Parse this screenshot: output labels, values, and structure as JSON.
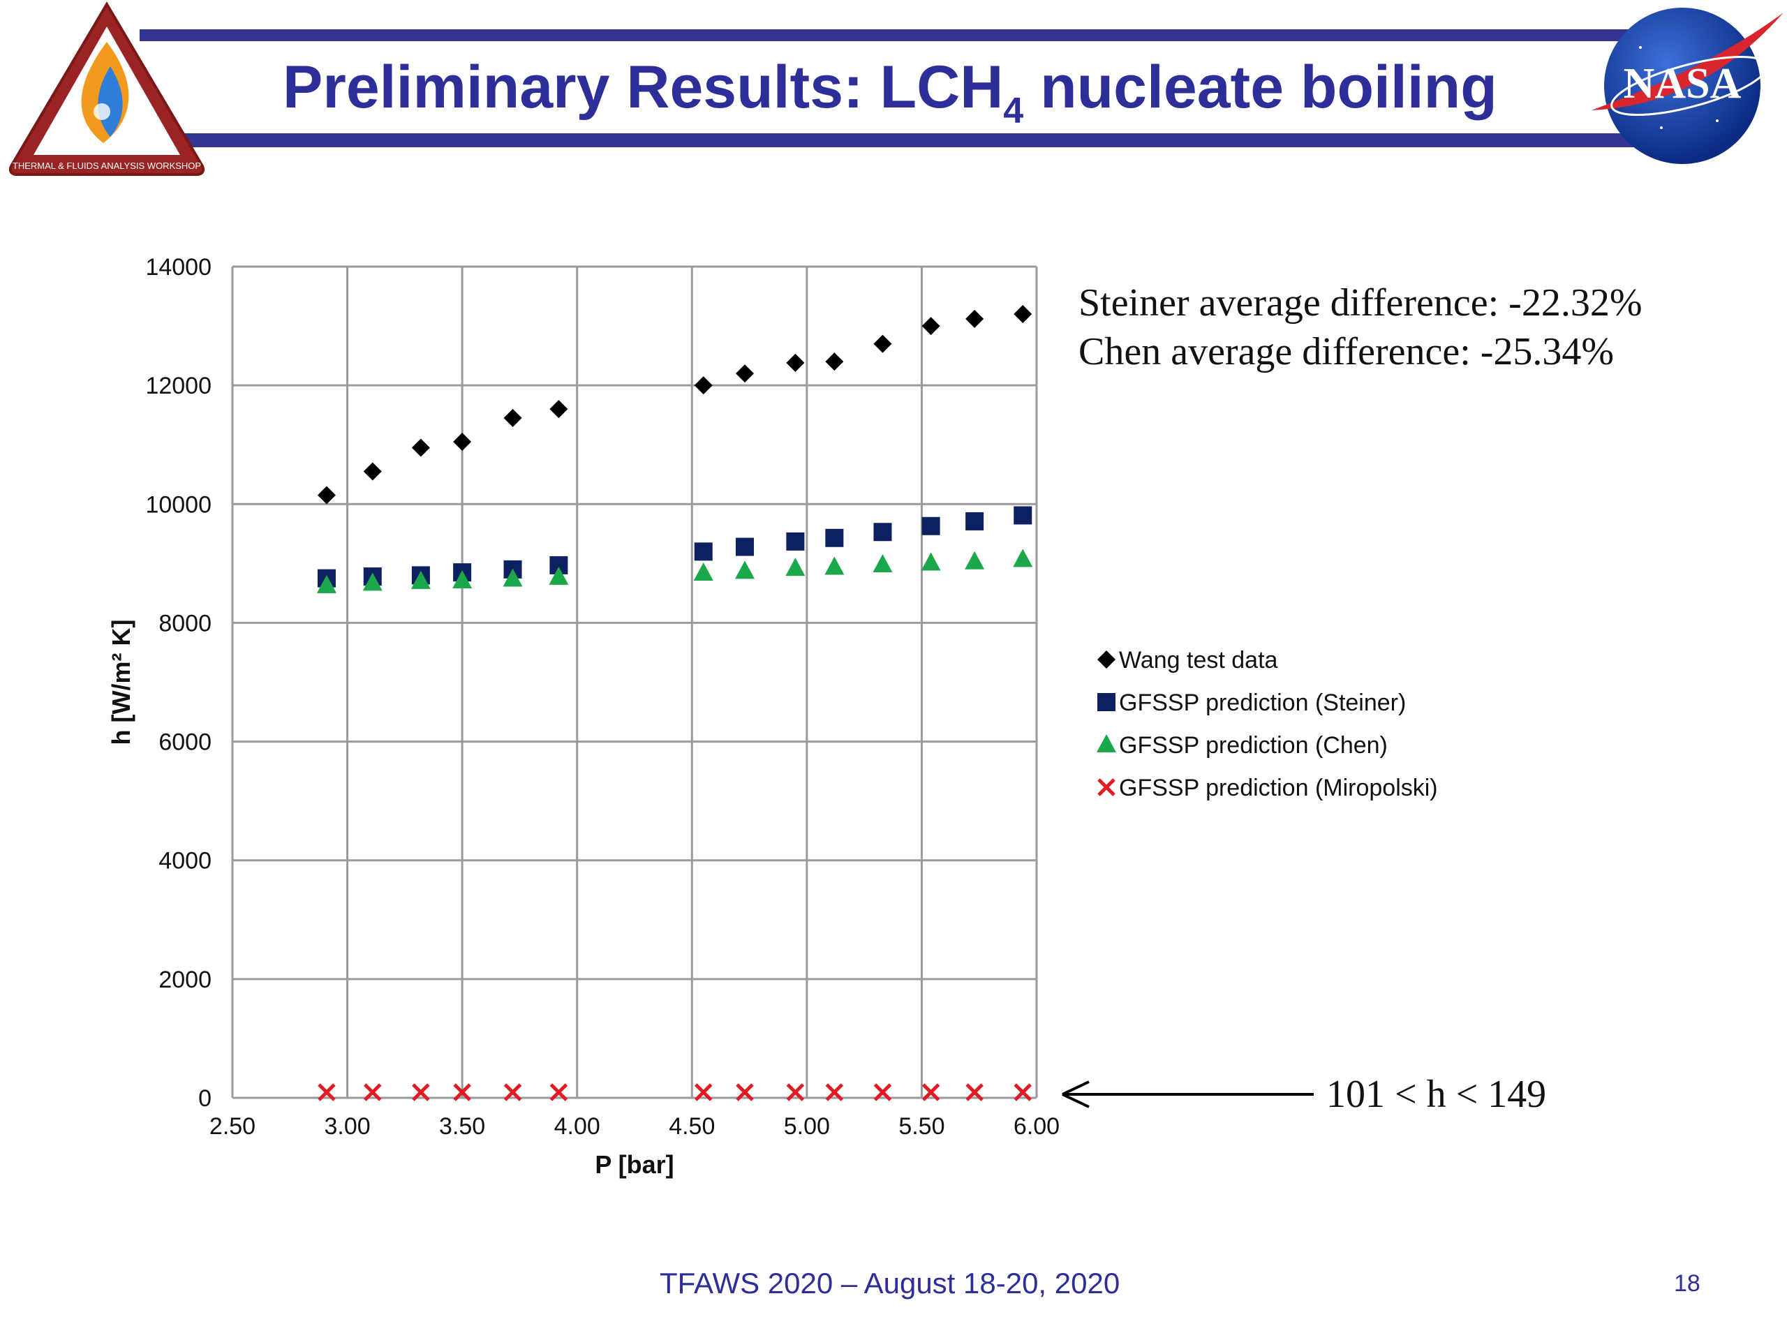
{
  "slide": {
    "title_main": "Preliminary Results:  LCH",
    "title_sub": "4",
    "title_rest": " nucleate boiling",
    "footer": "TFAWS 2020 – August 18-20, 2020",
    "page_number": "18",
    "logo_left_text": "THERMAL & FLUIDS ANALYSIS WORKSHOP",
    "logo_right_text": "NASA",
    "colors": {
      "title": "#2e2e99",
      "bars": "#333392"
    }
  },
  "annotations": {
    "steiner": "Steiner average difference:  -22.32%",
    "chen": "Chen average difference:  -25.34%",
    "range": "101 < h < 149"
  },
  "chart_data": {
    "type": "scatter",
    "title": "",
    "xlabel": "P [bar]",
    "ylabel": "h [W/m² K]",
    "xlim": [
      2.5,
      6.0
    ],
    "ylim": [
      0,
      14000
    ],
    "xticks": [
      "2.50",
      "3.00",
      "3.50",
      "4.00",
      "4.50",
      "5.00",
      "5.50",
      "6.00"
    ],
    "yticks": [
      "0",
      "2000",
      "4000",
      "6000",
      "8000",
      "10000",
      "12000",
      "14000"
    ],
    "grid": true,
    "legend_position": "right",
    "series": [
      {
        "name": "Wang test data",
        "marker": "diamond",
        "color": "#000000",
        "x": [
          2.91,
          3.11,
          3.32,
          3.5,
          3.72,
          3.92,
          4.55,
          4.73,
          4.95,
          5.12,
          5.33,
          5.54,
          5.73,
          5.94
        ],
        "y": [
          10150,
          10550,
          10950,
          11050,
          11450,
          11600,
          12000,
          12200,
          12380,
          12400,
          12700,
          13000,
          13120,
          13200
        ]
      },
      {
        "name": "GFSSP prediction (Steiner)",
        "marker": "square",
        "color": "#0d2060",
        "x": [
          2.91,
          3.11,
          3.32,
          3.5,
          3.72,
          3.92,
          4.55,
          4.73,
          4.95,
          5.12,
          5.33,
          5.54,
          5.73,
          5.94
        ],
        "y": [
          8750,
          8780,
          8800,
          8850,
          8900,
          8970,
          9200,
          9280,
          9370,
          9430,
          9530,
          9630,
          9710,
          9810
        ]
      },
      {
        "name": "GFSSP prediction (Chen)",
        "marker": "triangle",
        "color": "#1aa84a",
        "x": [
          2.91,
          3.11,
          3.32,
          3.5,
          3.72,
          3.92,
          4.55,
          4.73,
          4.95,
          5.12,
          5.33,
          5.54,
          5.73,
          5.94
        ],
        "y": [
          8630,
          8670,
          8700,
          8710,
          8740,
          8770,
          8840,
          8870,
          8920,
          8940,
          8980,
          9010,
          9030,
          9070
        ]
      },
      {
        "name": "GFSSP prediction (Miropolski)",
        "marker": "x",
        "color": "#e01b24",
        "x": [
          2.91,
          3.11,
          3.32,
          3.5,
          3.72,
          3.92,
          4.55,
          4.73,
          4.95,
          5.12,
          5.33,
          5.54,
          5.73,
          5.94
        ],
        "y": [
          101,
          105,
          109,
          113,
          117,
          121,
          125,
          129,
          133,
          137,
          141,
          145,
          147,
          149
        ]
      }
    ]
  }
}
